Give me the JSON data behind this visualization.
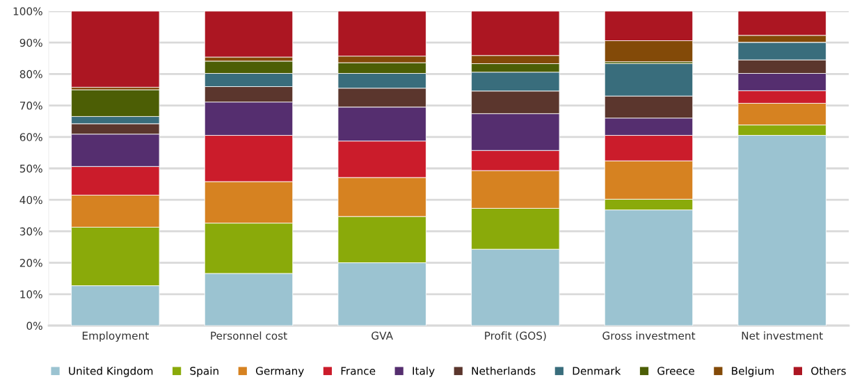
{
  "chart_data": {
    "type": "bar",
    "stacked": true,
    "categories": [
      "Employment",
      "Personnel cost",
      "GVA",
      "Profit (GOS)",
      "Gross investment",
      "Net investment"
    ],
    "series": [
      {
        "name": "United Kingdom",
        "color": "#9bc3d1",
        "values": [
          12.7,
          16.6,
          20.0,
          24.3,
          36.8,
          60.5
        ]
      },
      {
        "name": "Spain",
        "color": "#8aaa0a",
        "values": [
          18.6,
          16.0,
          14.7,
          13.0,
          3.4,
          3.3
        ]
      },
      {
        "name": "Germany",
        "color": "#d68221",
        "values": [
          10.2,
          13.2,
          12.4,
          12.0,
          12.2,
          6.9
        ]
      },
      {
        "name": "France",
        "color": "#cb1c2b",
        "values": [
          9.1,
          14.7,
          11.6,
          6.4,
          8.1,
          4.0
        ]
      },
      {
        "name": "Italy",
        "color": "#552e6f",
        "values": [
          10.3,
          10.6,
          10.8,
          11.7,
          5.5,
          5.5
        ]
      },
      {
        "name": "Netherlands",
        "color": "#5b362d",
        "values": [
          3.3,
          4.9,
          6.0,
          7.2,
          7.0,
          4.3
        ]
      },
      {
        "name": "Denmark",
        "color": "#396d7c",
        "values": [
          2.3,
          4.2,
          4.7,
          6.0,
          10.3,
          5.6
        ]
      },
      {
        "name": "Greece",
        "color": "#4c5e05",
        "values": [
          8.5,
          3.9,
          3.4,
          2.7,
          0.6,
          0.0
        ]
      },
      {
        "name": "Belgium",
        "color": "#834a08",
        "values": [
          0.8,
          1.3,
          2.1,
          2.6,
          6.7,
          2.2
        ]
      },
      {
        "name": "Others",
        "color": "#ac1622",
        "values": [
          24.2,
          14.6,
          14.3,
          14.1,
          9.4,
          7.7
        ]
      }
    ],
    "ylim": [
      0,
      100
    ],
    "yticks": [
      {
        "value": 0,
        "label": "0%"
      },
      {
        "value": 10,
        "label": "10%"
      },
      {
        "value": 20,
        "label": "20%"
      },
      {
        "value": 30,
        "label": "30%"
      },
      {
        "value": 40,
        "label": "40%"
      },
      {
        "value": 50,
        "label": "50%"
      },
      {
        "value": 60,
        "label": "60%"
      },
      {
        "value": 70,
        "label": "70%"
      },
      {
        "value": 80,
        "label": "80%"
      },
      {
        "value": 90,
        "label": "90%"
      },
      {
        "value": 100,
        "label": "100%"
      }
    ],
    "grid": "y",
    "legend": "bottom"
  }
}
